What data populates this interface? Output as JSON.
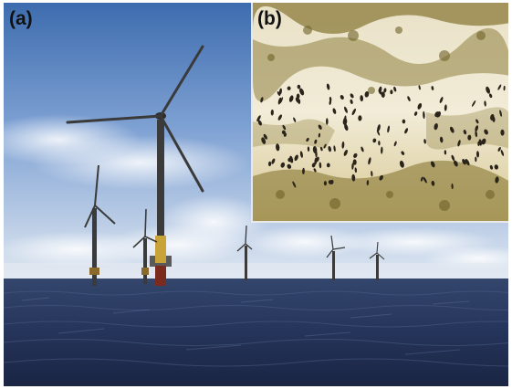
{
  "panels": {
    "a": {
      "label": "(a)"
    },
    "b": {
      "label": "(b)"
    }
  },
  "colors": {
    "sky_top": "#3f6fb2",
    "sky_mid": "#7fa3d6",
    "sky_horizon": "#d9e3ef",
    "cloud": "#f3f5f8",
    "sea_top": "#2e3e63",
    "sea_bottom": "#1b2745",
    "turbine_tower": "#3a3a3a",
    "turbine_base": "#c7a33a",
    "inset_bg": "#efe7cf",
    "inset_fouling": "#8a7a3a",
    "inset_spots": "#2a241a"
  }
}
